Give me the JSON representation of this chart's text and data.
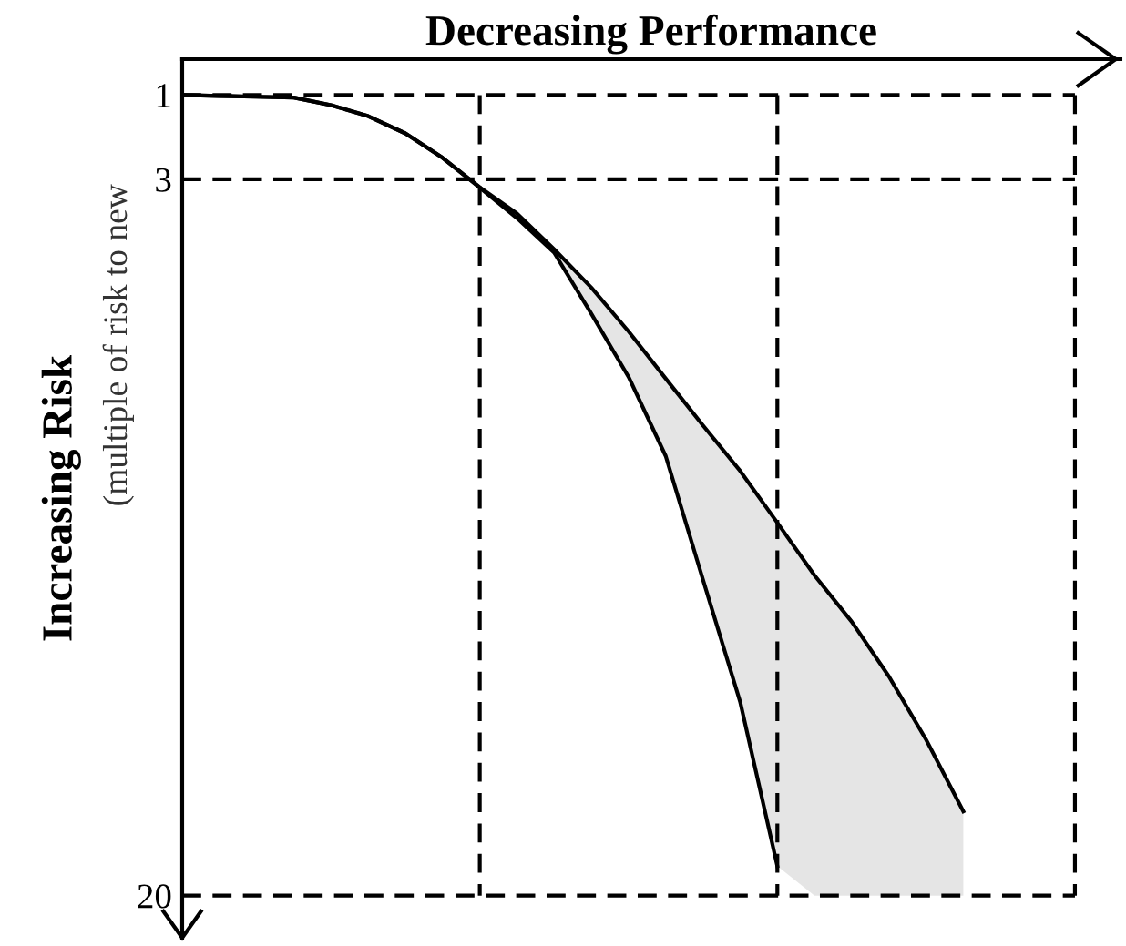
{
  "chart_data": {
    "type": "line",
    "xlabel": "Decreasing Performance",
    "ylabel": "Increasing Risk",
    "annotations": [
      "(multiple of risk to new"
    ],
    "categories": [
      null,
      null,
      null,
      null,
      null,
      null,
      null,
      null,
      null,
      null,
      null,
      null,
      null,
      null,
      null,
      null,
      null,
      null,
      null,
      null,
      null,
      null,
      null,
      null,
      null
    ],
    "series": [
      {
        "color": "#000000",
        "values": [
          1.0,
          1.02,
          1.04,
          1.06,
          1.24,
          1.5,
          1.91,
          2.49,
          3.19,
          3.81,
          4.66,
          5.57,
          6.61,
          7.73,
          8.84,
          9.92,
          11.15,
          12.4,
          13.5,
          14.8,
          16.3,
          18.0,
          null,
          null,
          null
        ],
        "lower": [
          null,
          null,
          null,
          null,
          null,
          null,
          null,
          null,
          3.19,
          3.81,
          4.66,
          5.57,
          6.61,
          7.73,
          8.84,
          9.92,
          11.15,
          12.4,
          13.5,
          14.8,
          16.3,
          18.0,
          null,
          null,
          null
        ],
        "upper": [
          null,
          null,
          null,
          null,
          null,
          null,
          null,
          null,
          3.2,
          3.92,
          4.74,
          6.19,
          7.69,
          9.57,
          12.5,
          15.4,
          19.3,
          20.0,
          20.0,
          20.0,
          20.0,
          20.0,
          null,
          null,
          null
        ]
      },
      {
        "color": "#000000",
        "values": [
          1.0,
          1.02,
          1.04,
          1.06,
          1.24,
          1.5,
          1.91,
          2.49,
          3.2,
          3.92,
          4.74,
          6.19,
          7.69,
          9.57,
          12.5,
          15.4,
          19.3,
          null,
          null,
          null,
          null,
          null,
          null,
          null,
          null
        ]
      }
    ],
    "ylim": [
      21,
      0.15
    ],
    "yticks": [
      1,
      3,
      20
    ],
    "grid": false,
    "marker": "none",
    "line_style": "solid",
    "ref_lines": [
      {
        "axis": "y",
        "value": 1,
        "color": "#000000",
        "line_style": "dashed"
      },
      {
        "axis": "y",
        "value": 3,
        "color": "#000000",
        "line_style": "dashed"
      },
      {
        "axis": "y",
        "value": 20,
        "color": "#000000",
        "line_style": "dashed"
      }
    ]
  }
}
